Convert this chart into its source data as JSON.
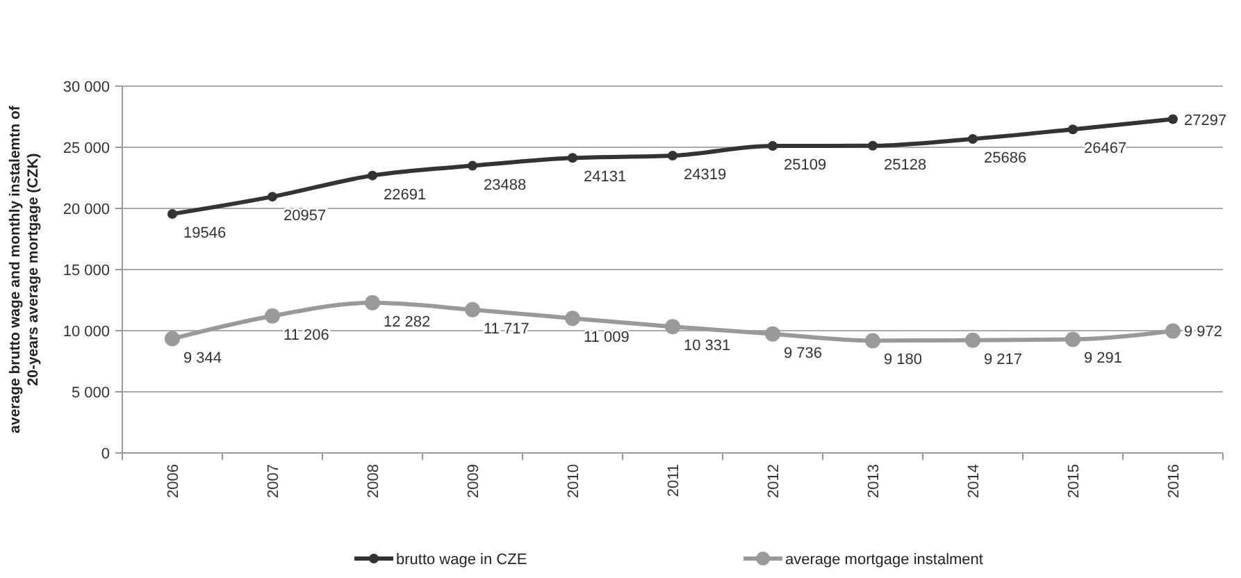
{
  "chart_data": {
    "type": "line",
    "ylabel": "average brutto wage and monthly instalemtn of 20-years average mortgage (CZK)",
    "categories": [
      "2006",
      "2007",
      "2008",
      "2009",
      "2010",
      "2011",
      "2012",
      "2013",
      "2014",
      "2015",
      "2016"
    ],
    "ylim": [
      0,
      30000
    ],
    "yticks": [
      0,
      {
        "value": 5000,
        "label": "5 000"
      },
      {
        "value": 10000,
        "label": "10 000"
      },
      {
        "value": 15000,
        "label": "15 000"
      },
      {
        "value": 20000,
        "label": "20 000"
      },
      {
        "value": 25000,
        "label": "25 000"
      },
      {
        "value": 30000,
        "label": "30 000"
      }
    ],
    "grid": "y",
    "legend": "bottom",
    "marker": "circle",
    "line_style": "solid",
    "series": [
      {
        "name": "brutto wage in CZE",
        "color": "#333333",
        "values": [
          19546,
          20957,
          22691,
          23488,
          24131,
          24319,
          25109,
          25128,
          25686,
          26467,
          27297
        ],
        "value_labels": [
          "19546",
          "20957",
          "22691",
          "23488",
          "24131",
          "24319",
          "25109",
          "25128",
          "25686",
          "26467",
          "27297"
        ]
      },
      {
        "name": "average mortgage instalment",
        "color": "#999999",
        "values": [
          9344,
          11206,
          12282,
          11717,
          11009,
          10331,
          9736,
          9180,
          9217,
          9291,
          9972
        ],
        "value_labels": [
          "9 344",
          "11 206",
          "12 282",
          "11 717",
          "11 009",
          "10 331",
          "9 736",
          "9 180",
          "9 217",
          "9 291",
          "9 972"
        ]
      }
    ]
  }
}
